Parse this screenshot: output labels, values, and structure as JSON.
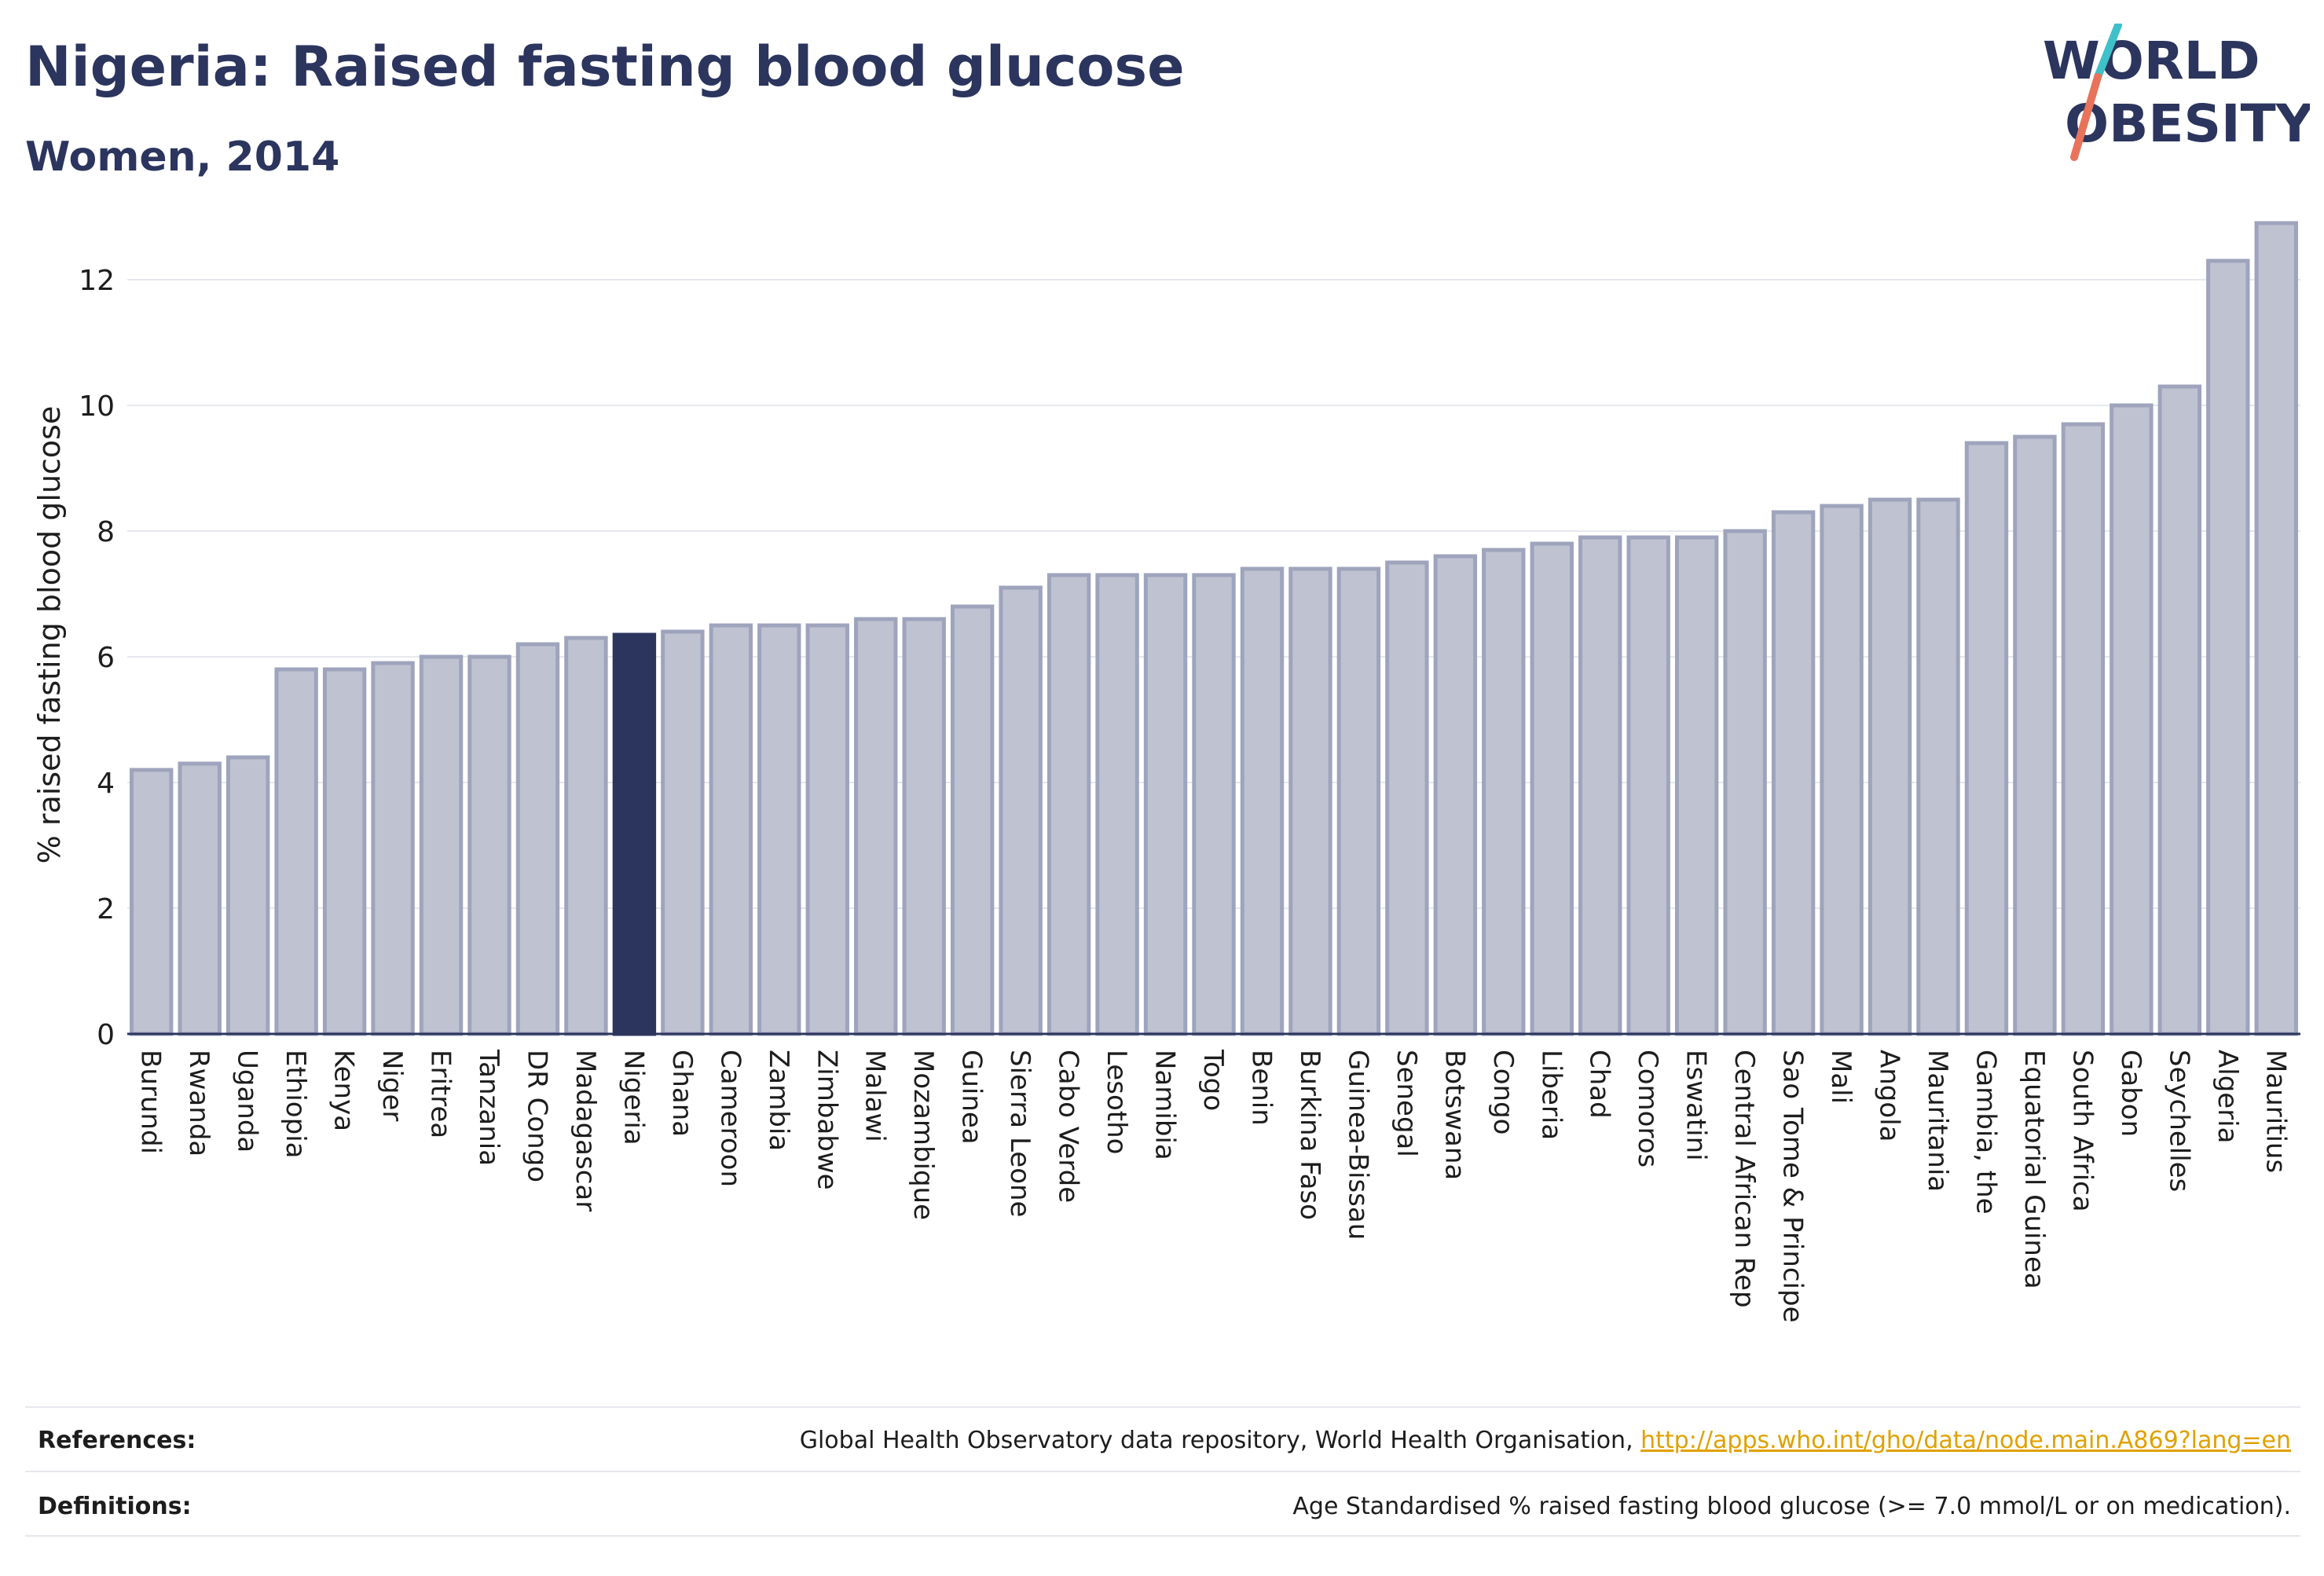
{
  "header": {
    "title": "Nigeria: Raised fasting blood glucose",
    "subtitle": "Women, 2014"
  },
  "logo": {
    "line1": "WORLD",
    "line2": "OBESITY",
    "colors": {
      "navy": "#2b355e",
      "teal": "#3fc1c9",
      "coral": "#e8735a"
    }
  },
  "colors": {
    "bar": "#bfc2d1",
    "bar_stroke": "#9fa4bd",
    "highlight": "#2b355e",
    "grid": "#e6e8ee",
    "axis": "#2b355e",
    "text": "#1d1d1d"
  },
  "chart_data": {
    "type": "bar",
    "title": "Nigeria: Raised fasting blood glucose",
    "subtitle": "Women, 2014",
    "xlabel": "",
    "ylabel": "% raised fasting blood glucose",
    "ylim": [
      0,
      13.2
    ],
    "yticks": [
      0,
      2,
      4,
      6,
      8,
      10,
      12
    ],
    "grid": true,
    "highlight": "Nigeria",
    "categories": [
      "Burundi",
      "Rwanda",
      "Uganda",
      "Ethiopia",
      "Kenya",
      "Niger",
      "Eritrea",
      "Tanzania",
      "DR Congo",
      "Madagascar",
      "Nigeria",
      "Ghana",
      "Cameroon",
      "Zambia",
      "Zimbabwe",
      "Malawi",
      "Mozambique",
      "Guinea",
      "Sierra Leone",
      "Cabo Verde",
      "Lesotho",
      "Namibia",
      "Togo",
      "Benin",
      "Burkina Faso",
      "Guinea-Bissau",
      "Senegal",
      "Botswana",
      "Congo",
      "Liberia",
      "Chad",
      "Comoros",
      "Eswatini",
      "Central African Rep",
      "Sao Tome & Principe",
      "Mali",
      "Angola",
      "Mauritania",
      "Gambia, the",
      "Equatorial Guinea",
      "South Africa",
      "Gabon",
      "Seychelles",
      "Algeria",
      "Mauritius"
    ],
    "values": [
      4.2,
      4.3,
      4.4,
      5.8,
      5.8,
      5.9,
      6.0,
      6.0,
      6.2,
      6.3,
      6.35,
      6.4,
      6.5,
      6.5,
      6.5,
      6.6,
      6.6,
      6.8,
      7.1,
      7.3,
      7.3,
      7.3,
      7.3,
      7.4,
      7.4,
      7.4,
      7.5,
      7.6,
      7.7,
      7.8,
      7.9,
      7.9,
      7.9,
      8.0,
      8.3,
      8.4,
      8.5,
      8.5,
      9.4,
      9.5,
      9.7,
      10.0,
      10.3,
      12.3,
      12.9
    ]
  },
  "footer": {
    "references_label": "References:",
    "references_text": "Global Health Observatory data repository, World Health Organisation, ",
    "references_link": "http://apps.who.int/gho/data/node.main.A869?lang=en",
    "definitions_label": "Definitions:",
    "definitions_text": "Age Standardised % raised fasting blood glucose (>= 7.0 mmol/L or on medication)."
  }
}
